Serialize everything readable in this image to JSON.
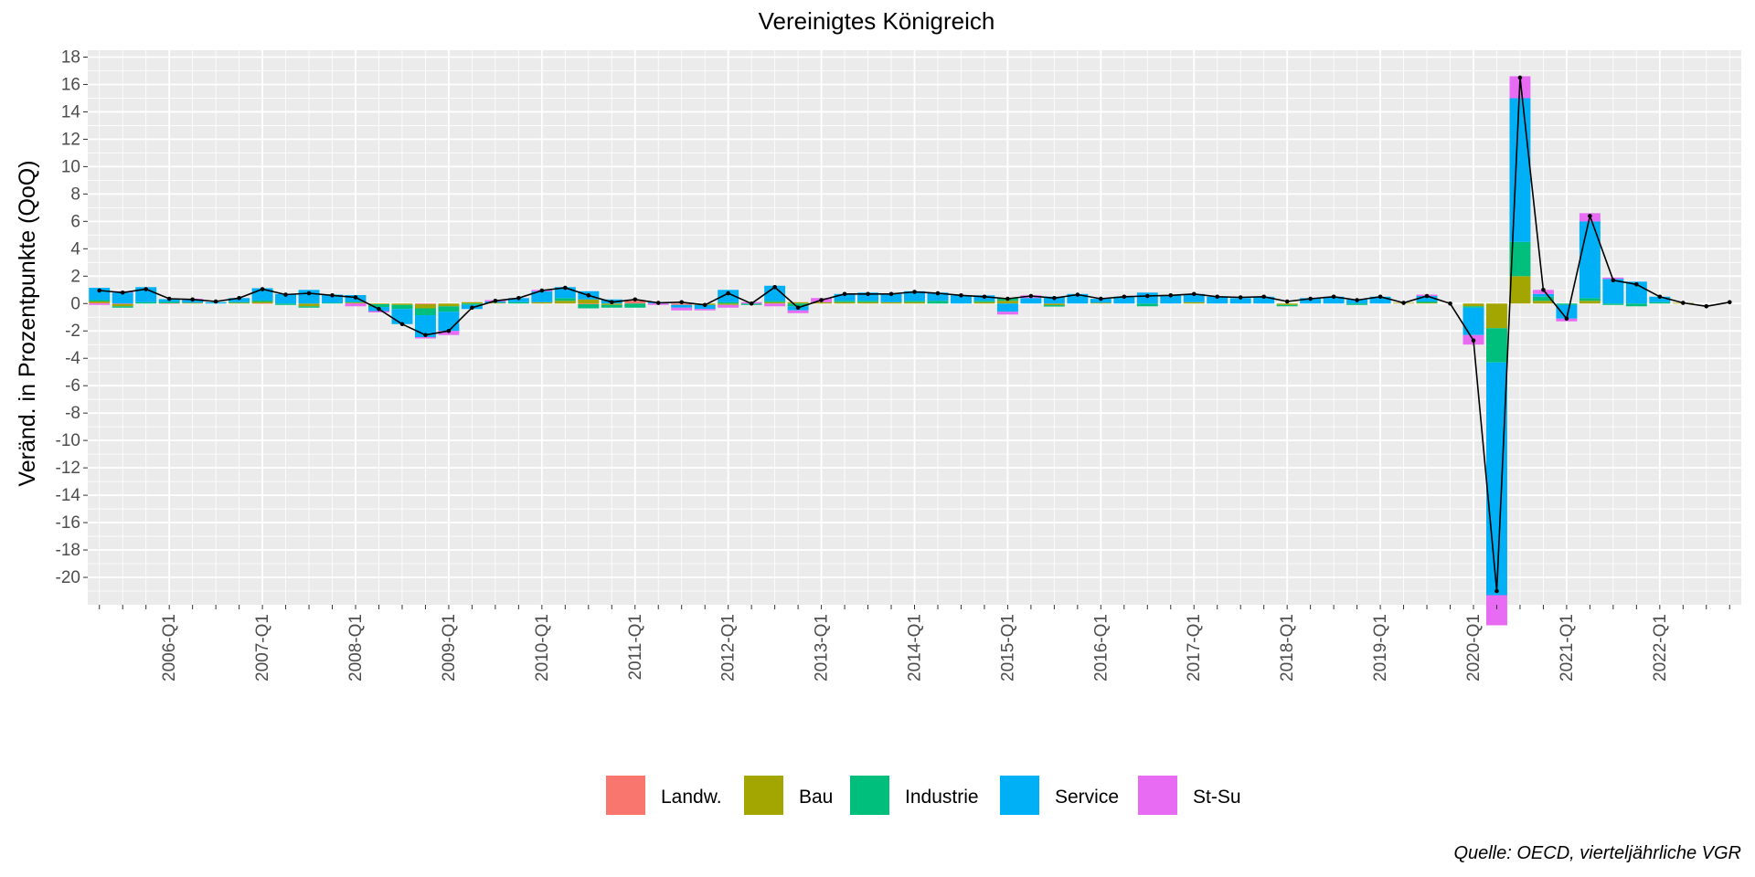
{
  "chart_data": {
    "type": "bar",
    "title": "Vereinigtes Königreich",
    "ylabel": "Veränd. in Prozentpunkte (QoQ)",
    "xlabel": "",
    "caption": "Quelle: OECD, vierteljährliche VGR",
    "ylim": [
      -22,
      18.5
    ],
    "yticks": [
      18,
      16,
      14,
      12,
      10,
      8,
      6,
      4,
      2,
      0,
      -2,
      -4,
      -6,
      -8,
      -10,
      -12,
      -14,
      -16,
      -18,
      -20
    ],
    "grid": true,
    "legend_position": "bottom",
    "colors": {
      "Landw.": "#F8766D",
      "Bau": "#A3A500",
      "Industrie": "#00BF7D",
      "Service": "#00B0F6",
      "St-Su": "#E76BF3"
    },
    "x": [
      "2005-Q2",
      "2005-Q3",
      "2005-Q4",
      "2006-Q1",
      "2006-Q2",
      "2006-Q3",
      "2006-Q4",
      "2007-Q1",
      "2007-Q2",
      "2007-Q3",
      "2007-Q4",
      "2008-Q1",
      "2008-Q2",
      "2008-Q3",
      "2008-Q4",
      "2009-Q1",
      "2009-Q2",
      "2009-Q3",
      "2009-Q4",
      "2010-Q1",
      "2010-Q2",
      "2010-Q3",
      "2010-Q4",
      "2011-Q1",
      "2011-Q2",
      "2011-Q3",
      "2011-Q4",
      "2012-Q1",
      "2012-Q2",
      "2012-Q3",
      "2012-Q4",
      "2013-Q1",
      "2013-Q2",
      "2013-Q3",
      "2013-Q4",
      "2014-Q1",
      "2014-Q2",
      "2014-Q3",
      "2014-Q4",
      "2015-Q1",
      "2015-Q2",
      "2015-Q3",
      "2015-Q4",
      "2016-Q1",
      "2016-Q2",
      "2016-Q3",
      "2016-Q4",
      "2017-Q1",
      "2017-Q2",
      "2017-Q3",
      "2017-Q4",
      "2018-Q1",
      "2018-Q2",
      "2018-Q3",
      "2018-Q4",
      "2019-Q1",
      "2019-Q2",
      "2019-Q3",
      "2019-Q4",
      "2020-Q1",
      "2020-Q2",
      "2020-Q3",
      "2020-Q4",
      "2021-Q1",
      "2021-Q2",
      "2021-Q3",
      "2021-Q4",
      "2022-Q1",
      "2022-Q2",
      "2022-Q3",
      "2022-Q4"
    ],
    "xtick_labels": [
      "2006-Q1",
      "2007-Q1",
      "2008-Q1",
      "2009-Q1",
      "2010-Q1",
      "2011-Q1",
      "2012-Q1",
      "2013-Q1",
      "2014-Q1",
      "2015-Q1",
      "2016-Q1",
      "2017-Q1",
      "2018-Q1",
      "2019-Q1",
      "2020-Q1",
      "2021-Q1",
      "2022-Q1"
    ],
    "series": [
      {
        "name": "Landw.",
        "values": [
          0.05,
          -0.05,
          0,
          0.02,
          0,
          0,
          0,
          0.02,
          0,
          0,
          0,
          0.02,
          0,
          0,
          -0.05,
          0,
          0,
          0,
          0,
          0,
          0,
          -0.05,
          0,
          0.2,
          0,
          -0.1,
          0,
          0,
          0,
          0,
          0,
          0,
          0,
          0,
          0,
          0,
          0,
          0,
          0,
          0,
          0,
          -0.02,
          0,
          0,
          0,
          0,
          0,
          0,
          0,
          0,
          0,
          0,
          0,
          0,
          0,
          0,
          0,
          0,
          0,
          0,
          0,
          0,
          0,
          0,
          0,
          0,
          0,
          0,
          0,
          0,
          0
        ]
      },
      {
        "name": "Bau",
        "values": [
          0.1,
          -0.15,
          0,
          0,
          0.05,
          0,
          0.05,
          0.1,
          0,
          -0.2,
          0,
          0.05,
          -0.05,
          -0.1,
          -0.3,
          -0.2,
          0.1,
          0.05,
          0,
          0.1,
          0.2,
          0.3,
          -0.1,
          0,
          0,
          0,
          -0.1,
          -0.1,
          0,
          0.1,
          0.1,
          0.1,
          0.1,
          0.1,
          0.1,
          0.1,
          0,
          0,
          0.1,
          0.2,
          0,
          -0.1,
          0,
          0.05,
          0,
          0,
          0,
          0.1,
          0,
          0,
          0,
          -0.1,
          0,
          0,
          0,
          0,
          0.05,
          0.05,
          0,
          -0.2,
          -1.8,
          2,
          0.2,
          0,
          0.2,
          0,
          0,
          0,
          0.05,
          0,
          0
        ]
      },
      {
        "name": "Industrie",
        "values": [
          0.1,
          -0.1,
          0.1,
          0.1,
          0,
          0,
          0.05,
          0.1,
          -0.1,
          -0.1,
          0.05,
          0.05,
          -0.2,
          -0.3,
          -0.5,
          -0.4,
          -0.1,
          0,
          0.1,
          0,
          0.2,
          -0.3,
          -0.2,
          -0.3,
          0,
          0,
          0,
          0.1,
          -0.1,
          0.1,
          -0.2,
          0,
          0.1,
          0.1,
          0,
          0.1,
          0.2,
          0,
          0.1,
          0.2,
          0,
          -0.1,
          0,
          0,
          0,
          -0.2,
          0,
          0,
          0,
          0,
          0,
          -0.1,
          0,
          0,
          -0.1,
          0,
          0,
          0.1,
          0,
          -0.1,
          -2.5,
          2.5,
          0.3,
          -0.1,
          0.2,
          -0.1,
          -0.2,
          0.1,
          0,
          0,
          0
        ]
      },
      {
        "name": "Service",
        "values": [
          0.9,
          0.8,
          1.1,
          0.2,
          0.2,
          0.1,
          0.3,
          0.9,
          0.7,
          1,
          0.6,
          0.5,
          -0.3,
          -1.1,
          -1.6,
          -1.4,
          -0.3,
          0.1,
          0.3,
          0.8,
          0.8,
          0.6,
          0.3,
          0,
          0.1,
          -0.2,
          -0.3,
          0.9,
          0,
          1.1,
          -0.3,
          0,
          0.5,
          0.6,
          0.6,
          0.7,
          0.6,
          0.6,
          0.4,
          -0.6,
          0.4,
          0.5,
          0.7,
          0.3,
          0.5,
          0.8,
          0.6,
          0.6,
          0.5,
          0.4,
          0.5,
          0,
          0.4,
          0.5,
          0.3,
          0.5,
          0,
          0.4,
          0,
          -2,
          -17,
          10.5,
          0.2,
          -1,
          5.6,
          1.8,
          1.6,
          0.4,
          0,
          0,
          0
        ]
      },
      {
        "name": "St-Su",
        "values": [
          -0.1,
          0.1,
          0,
          0,
          0.1,
          0,
          0,
          0,
          0,
          0,
          0,
          -0.2,
          -0.1,
          0,
          -0.1,
          -0.3,
          0,
          0.1,
          0,
          0.1,
          0,
          0,
          0,
          0,
          -0.1,
          -0.2,
          -0.1,
          -0.2,
          0.1,
          -0.2,
          -0.2,
          0.3,
          0,
          0,
          0,
          0,
          0,
          0,
          0,
          -0.2,
          0.2,
          0,
          0,
          0,
          0,
          0,
          0,
          0,
          0,
          0,
          0,
          0,
          0,
          0,
          0,
          0,
          0,
          0.1,
          0,
          -0.7,
          -2.2,
          1.6,
          0.3,
          -0.2,
          0.6,
          0.1,
          0,
          0,
          0,
          0,
          0
        ]
      }
    ],
    "total": [
      0.95,
      0.8,
      1.05,
      0.35,
      0.3,
      0.15,
      0.4,
      1.05,
      0.65,
      0.75,
      0.6,
      0.45,
      -0.4,
      -1.5,
      -2.3,
      -2.0,
      -0.3,
      0.2,
      0.4,
      0.95,
      1.15,
      0.6,
      0.1,
      0.3,
      0.05,
      0.1,
      -0.1,
      0.75,
      0,
      1.2,
      -0.3,
      0.25,
      0.7,
      0.7,
      0.7,
      0.85,
      0.75,
      0.6,
      0.5,
      0.35,
      0.55,
      0.4,
      0.65,
      0.35,
      0.5,
      0.55,
      0.6,
      0.7,
      0.5,
      0.45,
      0.5,
      0.15,
      0.35,
      0.5,
      0.25,
      0.5,
      0.05,
      0.55,
      0,
      -2.7,
      -21,
      16.5,
      1.0,
      -1.1,
      6.4,
      1.7,
      1.4,
      0.5,
      0.05,
      -0.2,
      0.1
    ]
  }
}
